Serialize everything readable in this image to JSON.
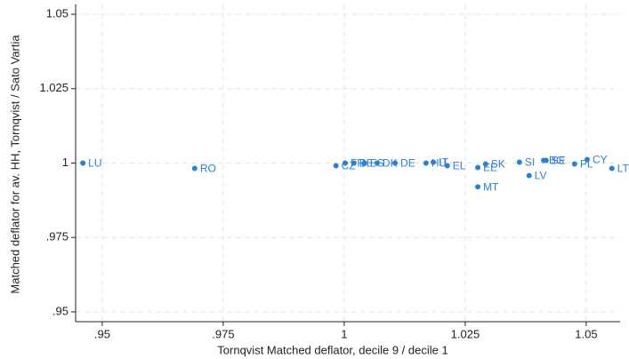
{
  "chart_data": {
    "type": "scatter",
    "x_label": "Tornqvist Matched deflator, decile 9 / decile 1",
    "y_label": "Matched deflator for av. HH, Tornqvist / Sato Vartia",
    "color": "#2d7fd6",
    "grid": true,
    "xlim": [
      0.9445,
      1.057
    ],
    "ylim": [
      0.9467,
      1.0533
    ],
    "xticks": [
      {
        "value": 0.95,
        "label": ".95"
      },
      {
        "value": 0.975,
        "label": ".975"
      },
      1,
      {
        "value": 1.025,
        "label": "1.025"
      },
      {
        "value": 1.05,
        "label": "1.05"
      }
    ],
    "yticks": [
      {
        "value": 0.95,
        "label": ".95"
      },
      {
        "value": 0.975,
        "label": ".975"
      },
      1,
      {
        "value": 1.025,
        "label": "1.025"
      },
      {
        "value": 1.05,
        "label": "1.05"
      }
    ],
    "point_labels": [
      "LU",
      "RO",
      "CZ",
      "FR",
      "BE",
      "ES",
      "DK",
      "DE",
      "HU",
      "IT",
      "EL",
      "EE",
      "MT",
      "SK",
      "SI",
      "LV",
      "BG",
      "SE",
      "PL",
      "CY",
      "LT"
    ],
    "x": [
      0.946,
      0.9691,
      0.9983,
      1.0002,
      1.002,
      1.0042,
      1.0068,
      1.0105,
      1.0169,
      1.0184,
      1.0213,
      1.0276,
      1.0276,
      1.0292,
      1.0362,
      1.0382,
      1.0412,
      1.0417,
      1.0476,
      1.0502,
      1.0553
    ],
    "values": [
      1.0,
      0.9982,
      0.9991,
      1.0,
      1.0,
      1.0,
      1.0,
      1.0,
      1.0,
      1.0003,
      0.9991,
      0.9985,
      0.992,
      0.9997,
      1.0003,
      0.9958,
      1.0009,
      1.0009,
      0.9997,
      1.0012,
      0.9982
    ]
  }
}
